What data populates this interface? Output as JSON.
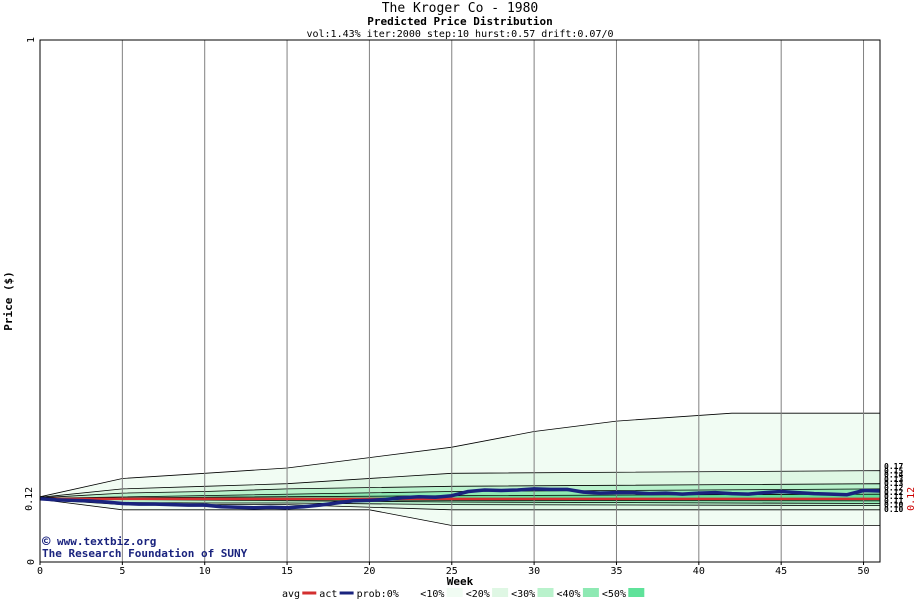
{
  "chart_data": {
    "type": "line",
    "title": "The Kroger Co - 1980",
    "subtitle": "Predicted Price Distribution",
    "params": "vol:1.43% iter:2000 step:10 hurst:0.57 drift:0.07/0",
    "xlabel": "Week",
    "ylabel": "Price ($)",
    "xlim": [
      0,
      51
    ],
    "ylim": [
      0,
      1
    ],
    "x_ticks": [
      0,
      5,
      10,
      15,
      20,
      25,
      30,
      35,
      40,
      45,
      50
    ],
    "y_ticks": [
      0,
      1
    ],
    "y_marker_label": "0.12",
    "right_marker_label": "0.12",
    "right_labels": [
      "0.17",
      "0.15",
      "0.14",
      "0.13",
      "0.13",
      "0.12",
      "0.12",
      "0.11",
      "0.11",
      "0.10",
      "0.10"
    ],
    "grid": true,
    "avg_level": 0.121,
    "act_level": 0.124,
    "bands": [
      {
        "upper": [
          [
            0,
            0.125
          ],
          [
            5,
            0.16
          ],
          [
            10,
            0.17
          ],
          [
            15,
            0.18
          ],
          [
            20,
            0.2
          ],
          [
            25,
            0.22
          ],
          [
            30,
            0.25
          ],
          [
            35,
            0.27
          ],
          [
            42,
            0.285
          ],
          [
            51,
            0.285
          ]
        ],
        "lower": [
          [
            0,
            0.12
          ],
          [
            5,
            0.1
          ],
          [
            10,
            0.1
          ],
          [
            15,
            0.1
          ],
          [
            20,
            0.1
          ],
          [
            25,
            0.07
          ],
          [
            51,
            0.07
          ]
        ]
      },
      {
        "upper": [
          [
            0,
            0.124
          ],
          [
            5,
            0.14
          ],
          [
            10,
            0.145
          ],
          [
            15,
            0.15
          ],
          [
            25,
            0.17
          ],
          [
            51,
            0.175
          ]
        ],
        "lower": [
          [
            0,
            0.12
          ],
          [
            5,
            0.11
          ],
          [
            10,
            0.11
          ],
          [
            15,
            0.11
          ],
          [
            25,
            0.1
          ],
          [
            51,
            0.1
          ]
        ]
      },
      {
        "upper": [
          [
            0,
            0.123
          ],
          [
            5,
            0.132
          ],
          [
            10,
            0.135
          ],
          [
            15,
            0.14
          ],
          [
            25,
            0.145
          ],
          [
            51,
            0.15
          ]
        ],
        "lower": [
          [
            0,
            0.121
          ],
          [
            5,
            0.114
          ],
          [
            10,
            0.113
          ],
          [
            15,
            0.113
          ],
          [
            25,
            0.11
          ],
          [
            51,
            0.108
          ]
        ]
      },
      {
        "upper": [
          [
            0,
            0.122
          ],
          [
            25,
            0.135
          ],
          [
            51,
            0.14
          ]
        ],
        "lower": [
          [
            0,
            0.121
          ],
          [
            25,
            0.115
          ],
          [
            51,
            0.112
          ]
        ]
      },
      {
        "upper": [
          [
            0,
            0.122
          ],
          [
            25,
            0.127
          ],
          [
            51,
            0.13
          ]
        ],
        "lower": [
          [
            0,
            0.121
          ],
          [
            25,
            0.118
          ],
          [
            51,
            0.117
          ]
        ]
      }
    ],
    "prob_series": [
      [
        0,
        0.121
      ],
      [
        1,
        0.119
      ],
      [
        2,
        0.118
      ],
      [
        3,
        0.117
      ],
      [
        4,
        0.115
      ],
      [
        5,
        0.112
      ],
      [
        6,
        0.111
      ],
      [
        7,
        0.111
      ],
      [
        8,
        0.11
      ],
      [
        9,
        0.109
      ],
      [
        10,
        0.109
      ],
      [
        11,
        0.106
      ],
      [
        12,
        0.105
      ],
      [
        13,
        0.104
      ],
      [
        14,
        0.105
      ],
      [
        15,
        0.104
      ],
      [
        16,
        0.106
      ],
      [
        17,
        0.109
      ],
      [
        18,
        0.113
      ],
      [
        19,
        0.117
      ],
      [
        20,
        0.118
      ],
      [
        21,
        0.12
      ],
      [
        22,
        0.123
      ],
      [
        23,
        0.125
      ],
      [
        24,
        0.124
      ],
      [
        25,
        0.127
      ],
      [
        26,
        0.135
      ],
      [
        27,
        0.138
      ],
      [
        28,
        0.137
      ],
      [
        29,
        0.138
      ],
      [
        30,
        0.14
      ],
      [
        31,
        0.139
      ],
      [
        32,
        0.139
      ],
      [
        33,
        0.134
      ],
      [
        34,
        0.132
      ],
      [
        35,
        0.133
      ],
      [
        36,
        0.133
      ],
      [
        37,
        0.131
      ],
      [
        38,
        0.132
      ],
      [
        39,
        0.13
      ],
      [
        40,
        0.132
      ],
      [
        41,
        0.133
      ],
      [
        42,
        0.131
      ],
      [
        43,
        0.13
      ],
      [
        44,
        0.133
      ],
      [
        45,
        0.135
      ],
      [
        46,
        0.133
      ],
      [
        47,
        0.131
      ],
      [
        48,
        0.13
      ],
      [
        49,
        0.129
      ],
      [
        50,
        0.137
      ],
      [
        51,
        0.136
      ]
    ],
    "legend": [
      {
        "label": "avg",
        "kind": "line",
        "color": "#d32f2f"
      },
      {
        "label": "act",
        "kind": "line",
        "color": "#1a237e"
      },
      {
        "label": "prob:0%",
        "kind": "box",
        "color": "#ffffff"
      },
      {
        "label": "<10%",
        "kind": "box",
        "color": "#f1fcf3"
      },
      {
        "label": "<20%",
        "kind": "box",
        "color": "#dff7e4"
      },
      {
        "label": "<30%",
        "kind": "box",
        "color": "#b9f2cc"
      },
      {
        "label": "<40%",
        "kind": "box",
        "color": "#8ee9b3"
      },
      {
        "label": "<50%",
        "kind": "box",
        "color": "#5fe29a"
      }
    ],
    "band_colors": [
      "#f1fcf3",
      "#dff7e4",
      "#b9f2cc",
      "#8ee9b3",
      "#5fe29a"
    ],
    "colors": {
      "avg": "#d32f2f",
      "prob": "#1a237e",
      "grid": "#808080",
      "marker": "#cc0000"
    }
  },
  "credits": {
    "copyright": "©",
    "site": "www.textbiz.org",
    "org": "The Research Foundation of SUNY"
  }
}
